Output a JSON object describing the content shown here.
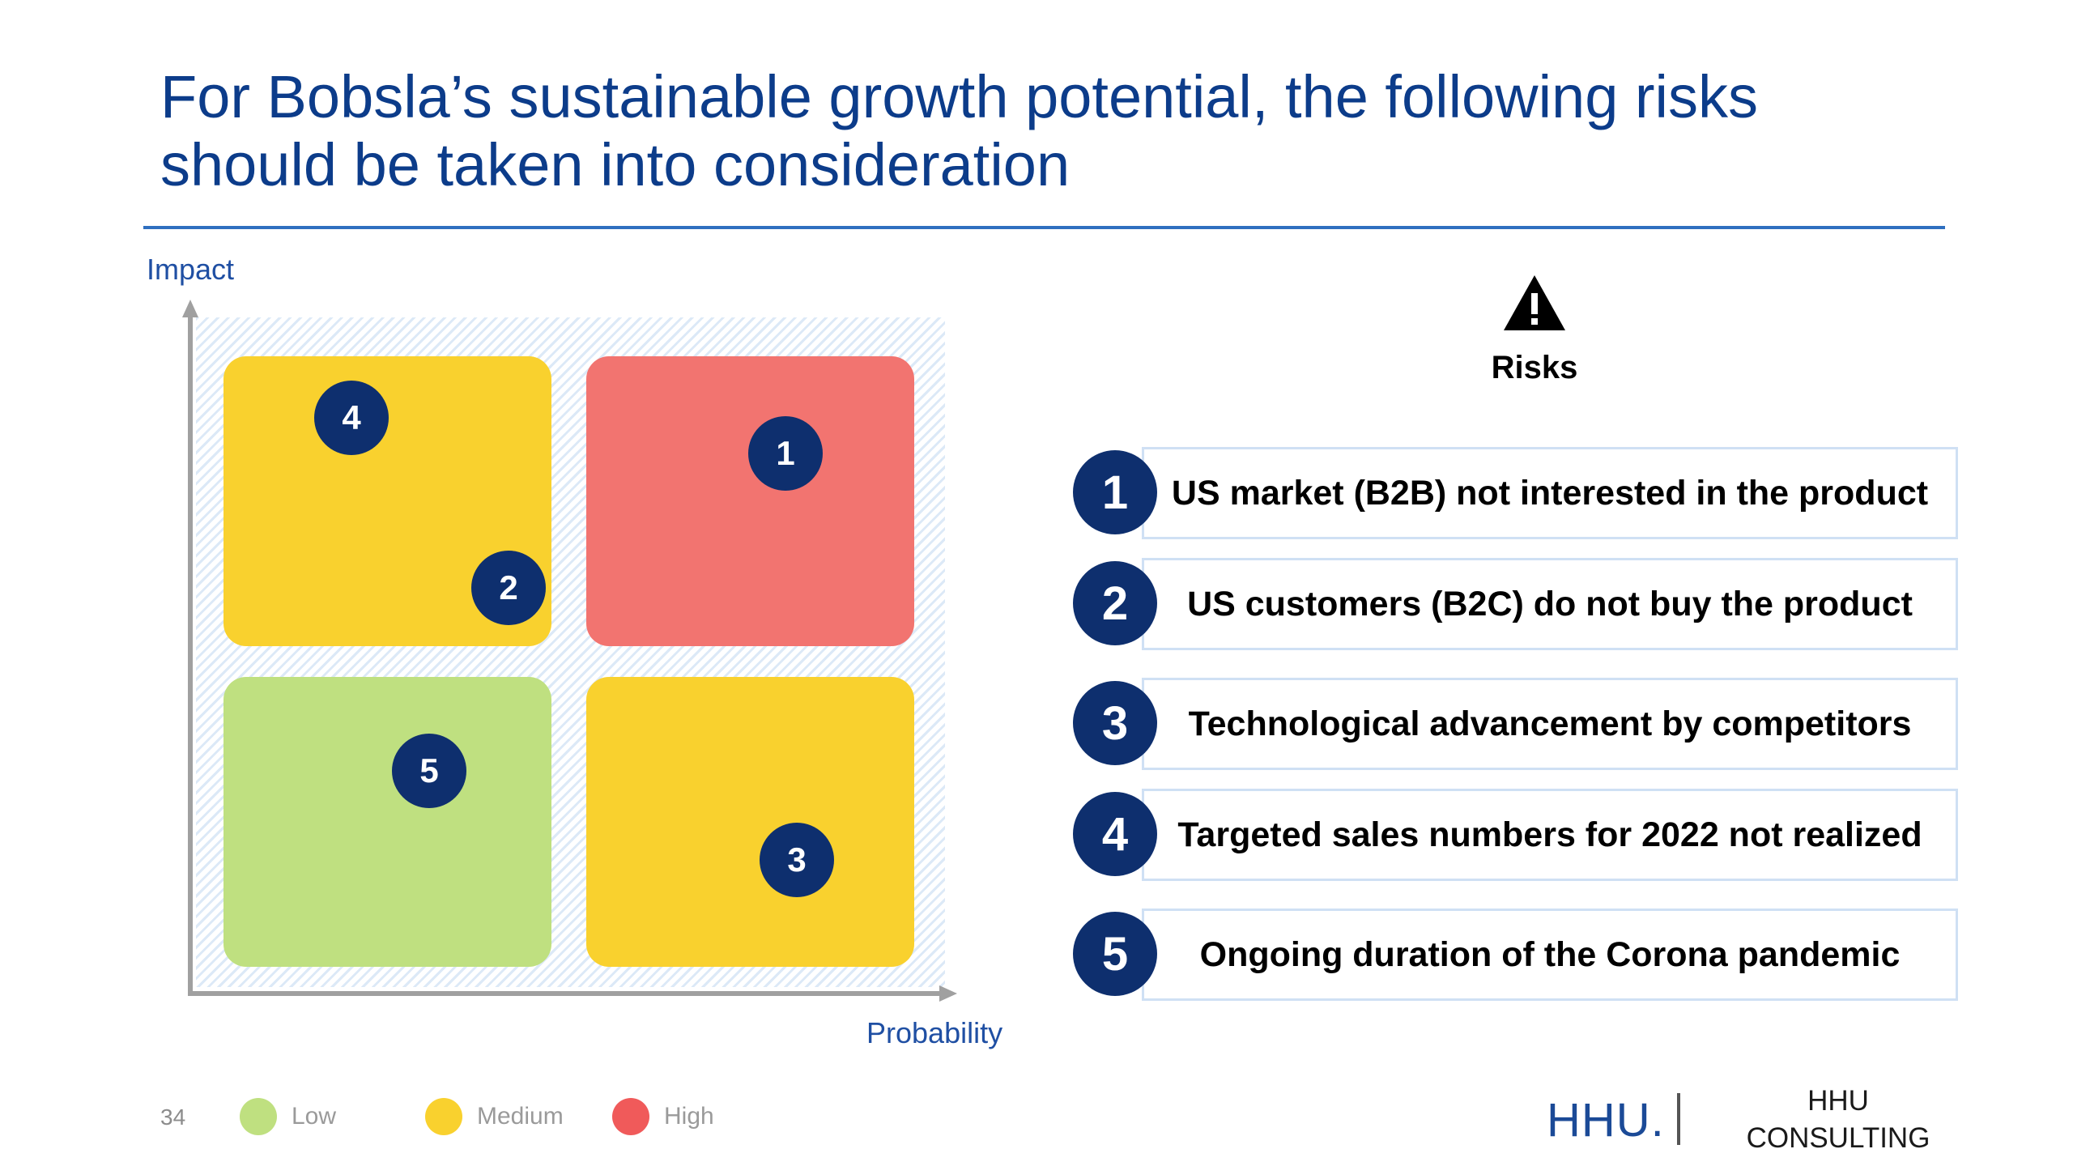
{
  "slide": {
    "title_line1": "For Bobsla’s sustainable growth potential, the following risks",
    "title_line2": "should be taken into consideration",
    "page_number": "34"
  },
  "matrix": {
    "y_axis_label": "Impact",
    "x_axis_label": "Probability",
    "quadrants": [
      {
        "id": "top-left",
        "level": "Medium",
        "color": "#f9d12e"
      },
      {
        "id": "top-right",
        "level": "High",
        "color": "#f27470"
      },
      {
        "id": "bottom-left",
        "level": "Low",
        "color": "#bfe080"
      },
      {
        "id": "bottom-right",
        "level": "Medium",
        "color": "#f9d12e"
      }
    ],
    "markers": [
      {
        "label": "4",
        "quadrant": "top-left"
      },
      {
        "label": "2",
        "quadrant": "top-left"
      },
      {
        "label": "1",
        "quadrant": "top-right"
      },
      {
        "label": "5",
        "quadrant": "bottom-left"
      },
      {
        "label": "3",
        "quadrant": "bottom-right"
      }
    ]
  },
  "risks": {
    "icon": "warning-triangle-icon",
    "heading": "Risks",
    "items": [
      {
        "number": "1",
        "text": "US market (B2B) not interested in the product"
      },
      {
        "number": "2",
        "text": "US customers (B2C) do not buy the product"
      },
      {
        "number": "3",
        "text": "Technological advancement by competitors"
      },
      {
        "number": "4",
        "text": "Targeted sales numbers for 2022 not realized"
      },
      {
        "number": "5",
        "text": "Ongoing duration of the Corona pandemic"
      }
    ]
  },
  "legend": [
    {
      "label": "Low",
      "color": "#bfe080"
    },
    {
      "label": "Medium",
      "color": "#f9d12e"
    },
    {
      "label": "High",
      "color": "#f05a5a"
    }
  ],
  "branding": {
    "logo": "HHU.",
    "name_line1": "HHU",
    "name_line2": "CONSULTING"
  },
  "colors": {
    "title": "#0c3c8a",
    "marker": "#0e2f6e",
    "rule": "#2f6fc0"
  }
}
